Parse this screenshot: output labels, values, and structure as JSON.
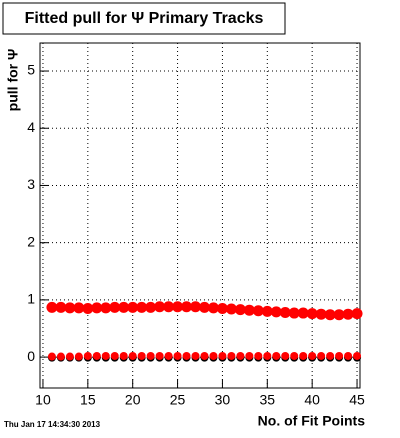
{
  "chart_data": {
    "type": "scatter",
    "title": "Fitted pull for  Ψ  Primary Tracks",
    "y_label": "pull for Ψ",
    "x_label": "No. of Fit Points",
    "timestamp": "Thu Jan 17 14:34:30 2013",
    "x": [
      11,
      12,
      13,
      14,
      15,
      16,
      17,
      18,
      19,
      20,
      21,
      22,
      23,
      24,
      25,
      26,
      27,
      28,
      29,
      30,
      31,
      32,
      33,
      34,
      35,
      36,
      37,
      38,
      39,
      40,
      41,
      42,
      43,
      44,
      45
    ],
    "series": [
      {
        "color": "#000000",
        "size": 4,
        "values": [
          -0.01,
          -0.01,
          -0.01,
          -0.01,
          -0.01,
          -0.01,
          -0.01,
          -0.01,
          -0.01,
          -0.01,
          -0.01,
          -0.01,
          -0.01,
          -0.01,
          -0.01,
          -0.01,
          -0.01,
          -0.01,
          -0.01,
          -0.01,
          -0.01,
          -0.01,
          -0.01,
          -0.01,
          -0.01,
          -0.01,
          -0.01,
          -0.01,
          -0.01,
          -0.01,
          -0.01,
          -0.01,
          -0.01,
          -0.01,
          -0.01
        ]
      },
      {
        "color": "#ff0000",
        "size": 4,
        "values": [
          0.01,
          0.01,
          0.01,
          0.01,
          0.02,
          0.02,
          0.02,
          0.02,
          0.02,
          0.02,
          0.02,
          0.02,
          0.02,
          0.02,
          0.02,
          0.02,
          0.02,
          0.02,
          0.02,
          0.02,
          0.02,
          0.02,
          0.02,
          0.02,
          0.02,
          0.02,
          0.02,
          0.02,
          0.02,
          0.02,
          0.02,
          0.02,
          0.02,
          0.02,
          0.02
        ]
      },
      {
        "color": "#ff0000",
        "size": 5.5,
        "values": [
          0.87,
          0.87,
          0.86,
          0.86,
          0.85,
          0.86,
          0.86,
          0.87,
          0.87,
          0.87,
          0.87,
          0.87,
          0.88,
          0.88,
          0.88,
          0.88,
          0.88,
          0.87,
          0.86,
          0.85,
          0.84,
          0.83,
          0.82,
          0.81,
          0.8,
          0.79,
          0.78,
          0.77,
          0.77,
          0.76,
          0.75,
          0.74,
          0.74,
          0.75,
          0.76
        ]
      }
    ],
    "xlim": [
      9.67,
      45.33
    ],
    "ylim": [
      -0.54,
      5.49
    ],
    "xticks": [
      10,
      15,
      20,
      25,
      30,
      35,
      40,
      45
    ],
    "yticks": [
      0,
      1,
      2,
      3,
      4,
      5
    ],
    "grid": true
  }
}
